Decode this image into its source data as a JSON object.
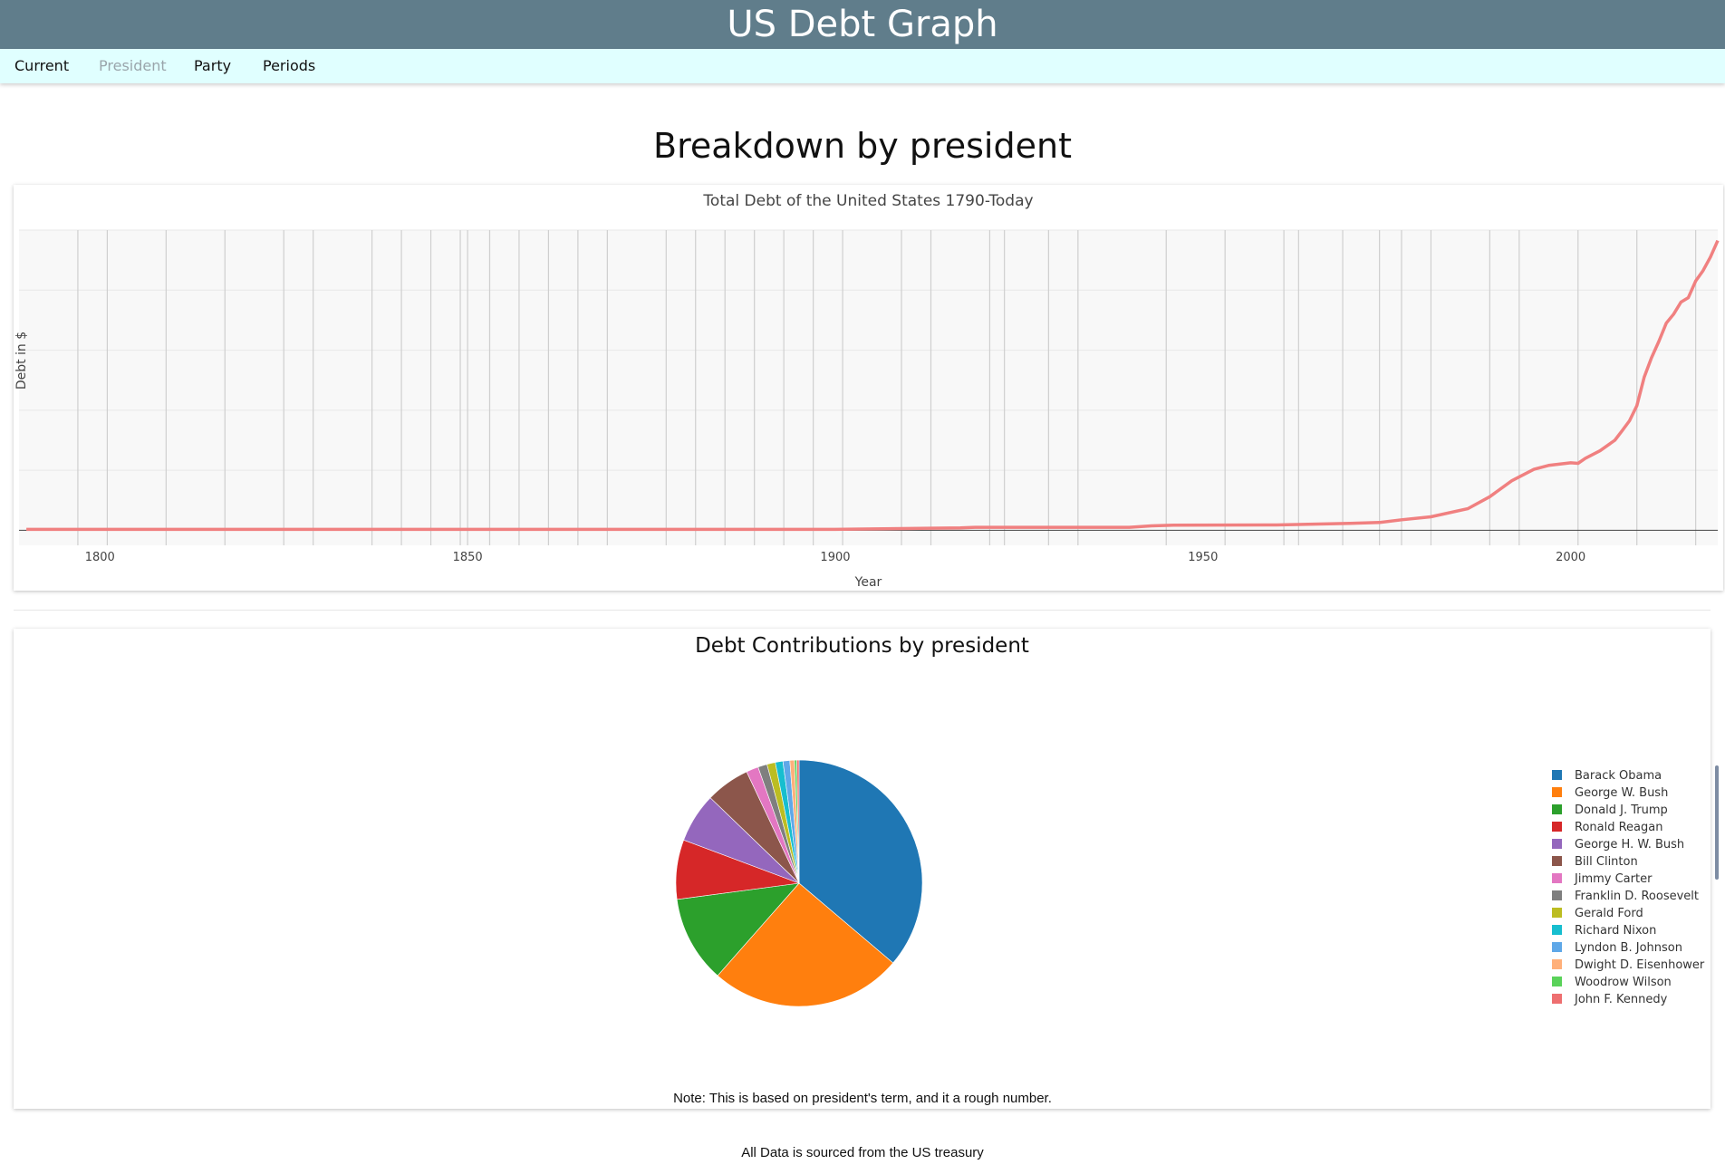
{
  "header": {
    "title": "US Debt Graph"
  },
  "nav": {
    "items": [
      {
        "label": "Current",
        "active": false
      },
      {
        "label": "President",
        "active": true
      },
      {
        "label": "Party",
        "active": false
      },
      {
        "label": "Periods",
        "active": false
      }
    ]
  },
  "page": {
    "heading": "Breakdown by president",
    "note": "Note: This is based on president's term, and it a rough number.",
    "footer": "All Data is sourced from the US treasury"
  },
  "colors": {
    "header_bg": "#607d8b",
    "nav_bg": "#e0ffff",
    "line": "#f08080",
    "plot_bg": "#f8f8f8"
  },
  "chart_data": [
    {
      "type": "line",
      "title": "Total Debt of the United States 1790-Today",
      "xlabel": "Year",
      "ylabel": "Debt in $",
      "x_ticks": [
        1800,
        1850,
        1900,
        1950,
        2000
      ],
      "xlim": [
        1789,
        2020
      ],
      "ylim": [
        -5,
        100
      ],
      "y_units": "relative (no tick labels shown)",
      "grid": true,
      "term_boundaries": [
        1797,
        1801,
        1809,
        1817,
        1825,
        1829,
        1837,
        1841,
        1845,
        1849,
        1850,
        1853,
        1857,
        1861,
        1865,
        1869,
        1877,
        1881,
        1885,
        1889,
        1893,
        1897,
        1901,
        1909,
        1913,
        1921,
        1923,
        1929,
        1933,
        1945,
        1953,
        1961,
        1963,
        1969,
        1974,
        1977,
        1981,
        1989,
        1993,
        2001,
        2009,
        2017
      ],
      "series": [
        {
          "color": "#f08080",
          "x": [
            1790,
            1900,
            1917,
            1919,
            1940,
            1943,
            1946,
            1960,
            1970,
            1974,
            1977,
            1981,
            1986,
            1989,
            1992,
            1995,
            1997,
            2000,
            2001,
            2002,
            2004,
            2006,
            2007,
            2008,
            2009,
            2010,
            2011,
            2012,
            2013,
            2014,
            2015,
            2016,
            2017,
            2018,
            2019,
            2020
          ],
          "y": [
            0.3,
            0.3,
            0.8,
            1.0,
            1.0,
            1.5,
            1.7,
            1.8,
            2.3,
            2.6,
            3.5,
            4.5,
            7.2,
            11.2,
            16.5,
            20.3,
            21.6,
            22.5,
            22.3,
            24.0,
            26.5,
            30.0,
            33.2,
            36.5,
            41.5,
            51.0,
            57.5,
            63.0,
            69.0,
            72.0,
            76.0,
            77.5,
            83.0,
            86.5,
            91.0,
            96.5
          ]
        }
      ]
    },
    {
      "type": "pie",
      "title": "Debt Contributions by president",
      "legend_position": "right",
      "categories": [
        "Barack Obama",
        "George W. Bush",
        "Donald J. Trump",
        "Ronald Reagan",
        "George H. W. Bush",
        "Bill Clinton",
        "Jimmy Carter",
        "Franklin D. Roosevelt",
        "Gerald Ford",
        "Richard Nixon",
        "Lyndon B. Johnson",
        "Dwight D. Eisenhower",
        "Woodrow Wilson",
        "John F. Kennedy"
      ],
      "values": [
        36.2,
        25.3,
        11.4,
        7.8,
        6.5,
        5.8,
        1.6,
        1.2,
        1.1,
        1.0,
        0.9,
        0.6,
        0.3,
        0.3
      ],
      "colors": [
        "#1f77b4",
        "#ff7f0e",
        "#2ca02c",
        "#d62728",
        "#9467bd",
        "#8c564b",
        "#e377c2",
        "#7f7f7f",
        "#bcbd22",
        "#17becf",
        "#5fa8e8",
        "#ffb07a",
        "#5ad25a",
        "#ee6f70"
      ]
    }
  ]
}
